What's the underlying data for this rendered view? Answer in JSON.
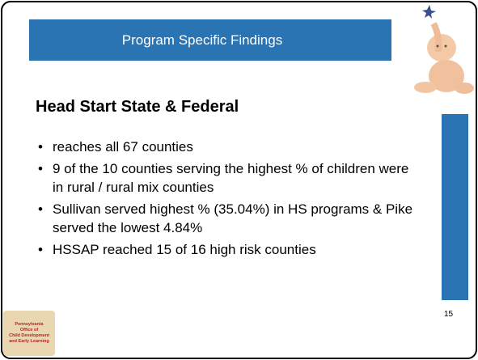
{
  "header": {
    "title": "Program Specific Findings"
  },
  "heading": "Head Start State & Federal",
  "bullets": [
    "reaches all 67 counties",
    "9 of the 10 counties serving the highest % of children were in rural / rural mix counties",
    "Sullivan served highest % (35.04%) in HS programs & Pike served the lowest 4.84%",
    "HSSAP reached 15 of 16 high risk counties"
  ],
  "logo": {
    "lines": [
      "Pennsylvania",
      "Office of",
      "Child Development",
      "and Early Learning"
    ]
  },
  "page_number": "15"
}
